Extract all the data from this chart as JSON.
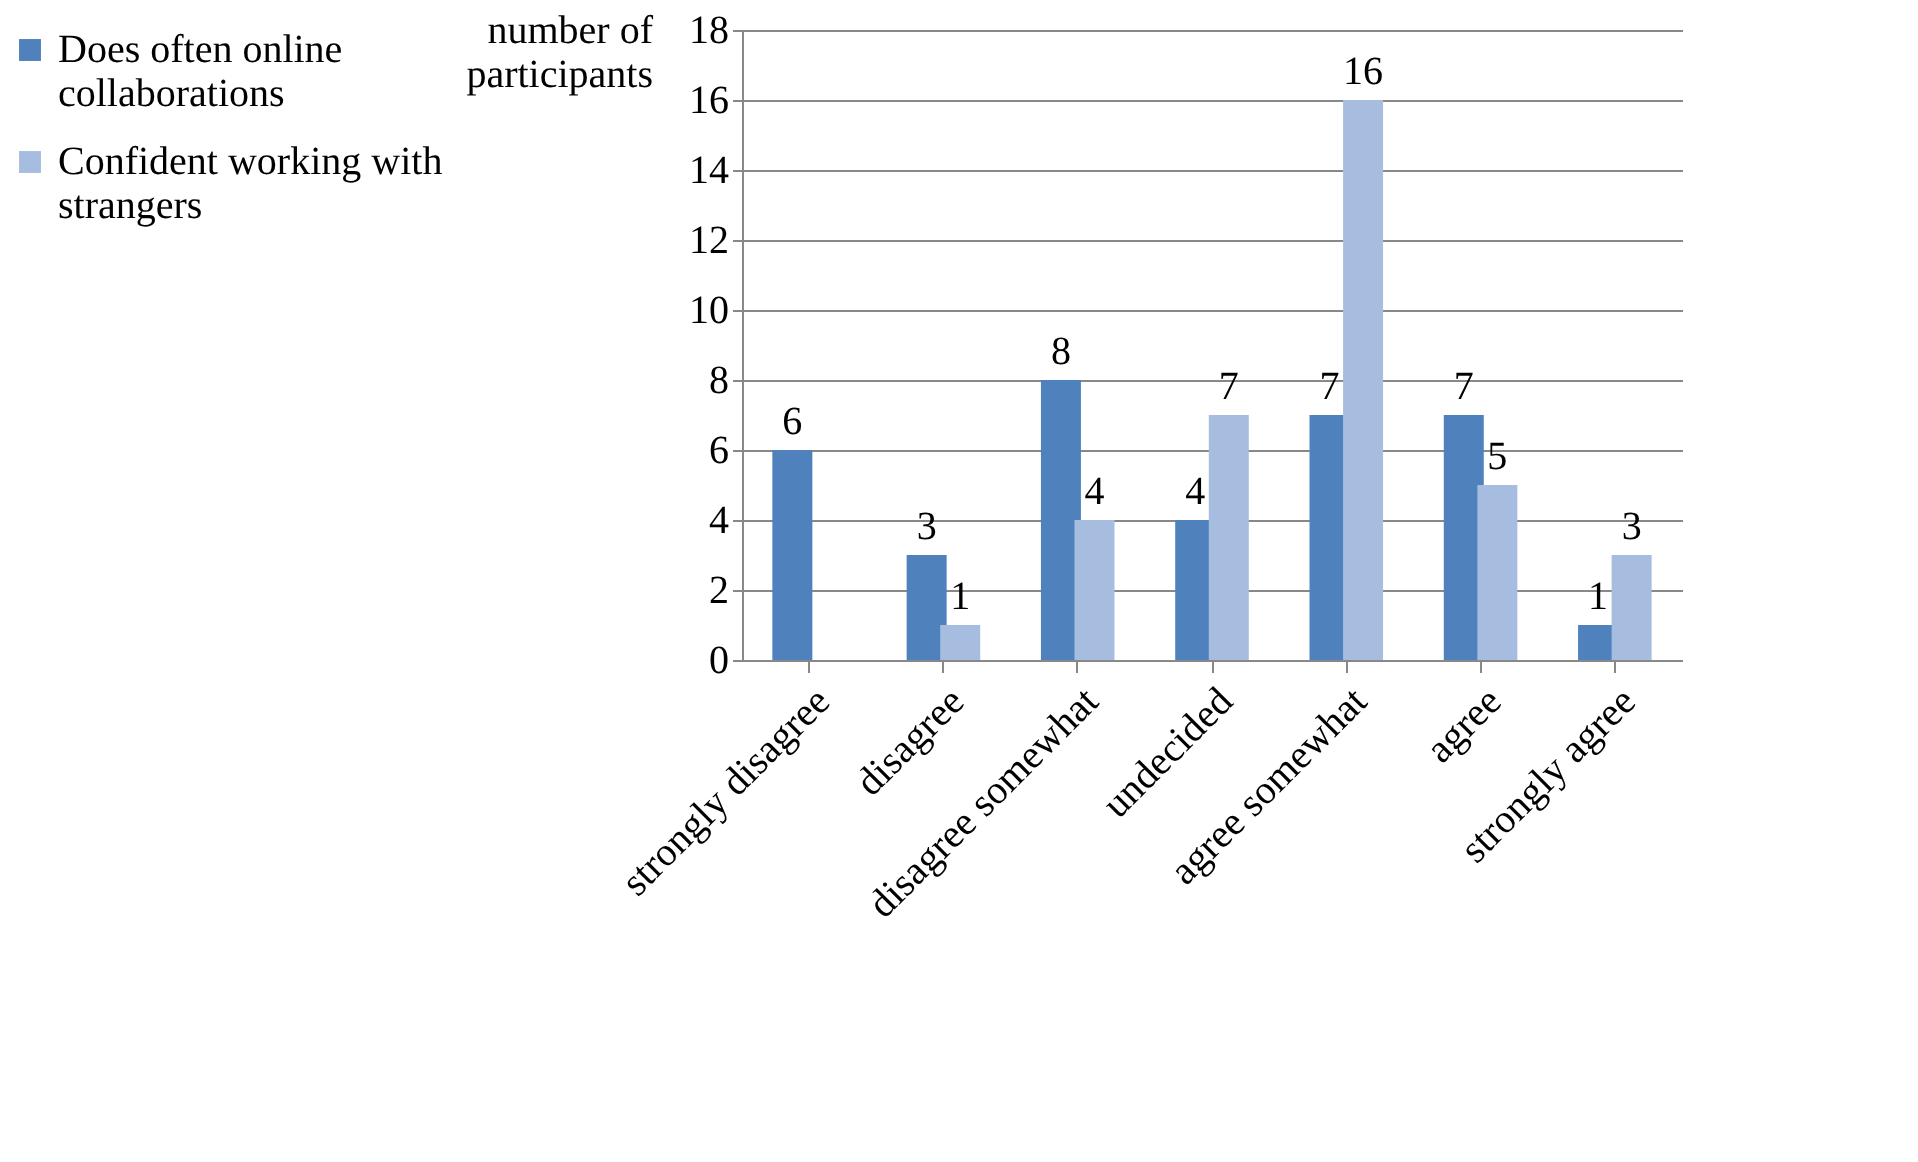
{
  "chart_data": {
    "type": "bar",
    "ylabel": "number of participants",
    "categories": [
      "strongly disagree",
      "disagree",
      "disagree somewhat",
      "undecided",
      "agree somewhat",
      "agree",
      "strongly agree"
    ],
    "series": [
      {
        "name": "Does often online collaborations",
        "color": "#4f81bd",
        "values": [
          6,
          3,
          8,
          4,
          7,
          7,
          1
        ],
        "value_labels": [
          "6",
          "3",
          "8",
          "4",
          "7",
          "7",
          "1"
        ]
      },
      {
        "name": "Confident working with strangers",
        "color": "#a7bde0",
        "values": [
          0,
          1,
          4,
          7,
          16,
          5,
          3
        ],
        "value_labels": [
          null,
          "1",
          "4",
          "7",
          "16",
          "5",
          "3"
        ]
      }
    ],
    "ylim": [
      0,
      18
    ],
    "yticks": [
      0,
      2,
      4,
      6,
      8,
      10,
      12,
      14,
      16,
      18
    ],
    "grid": "y",
    "legend": "left"
  }
}
